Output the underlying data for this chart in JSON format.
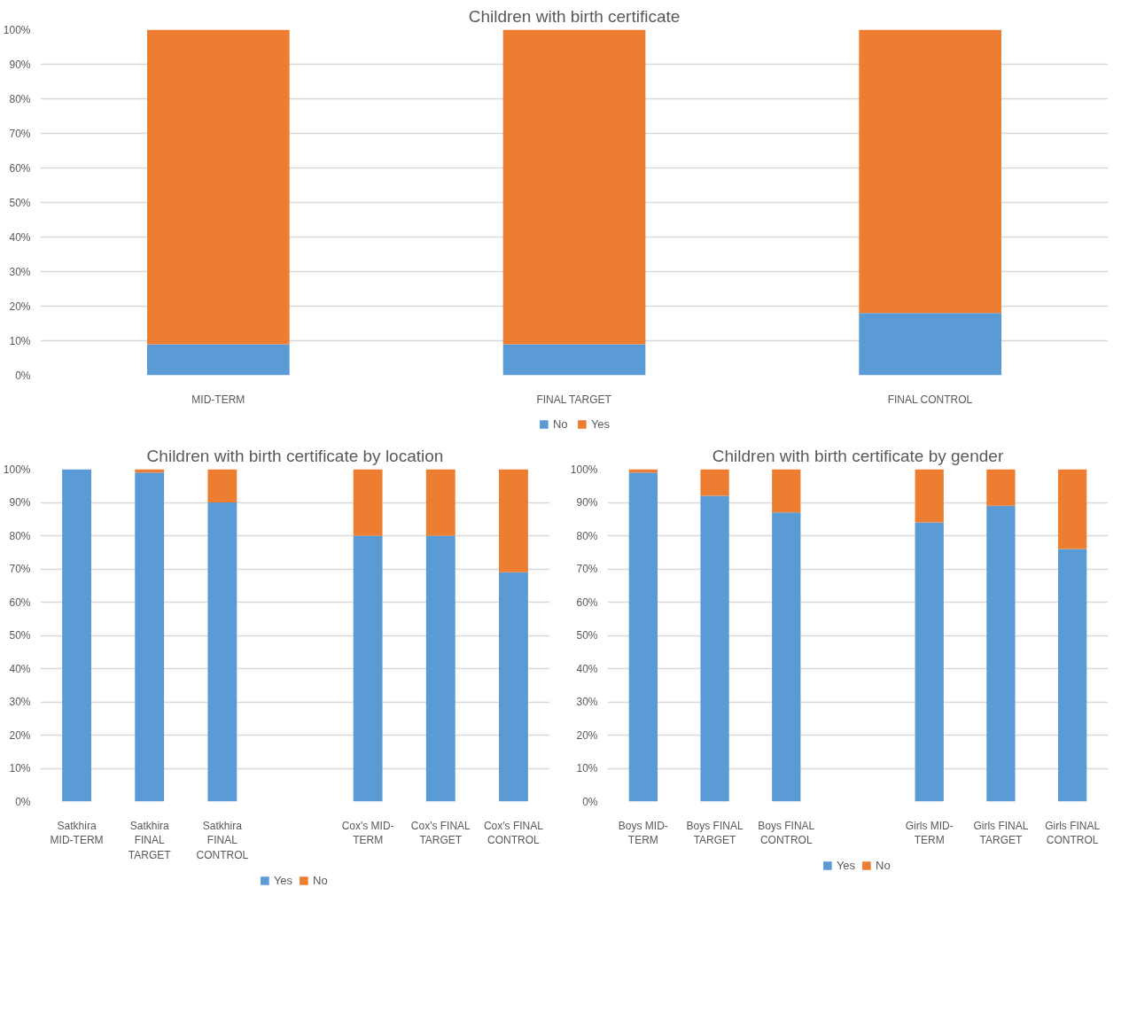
{
  "chart_data": [
    {
      "type": "bar",
      "title": "Children with birth certificate",
      "categories": [
        "MID-TERM",
        "FINAL TARGET",
        "FINAL CONTROL"
      ],
      "stacked": true,
      "grid": "y",
      "legend": "bottom",
      "ylim": [
        0,
        100
      ],
      "yticks": [
        {
          "value": 0,
          "label": "0%"
        },
        {
          "value": 10,
          "label": "10%"
        },
        {
          "value": 20,
          "label": "20%"
        },
        {
          "value": 30,
          "label": "30%"
        },
        {
          "value": 40,
          "label": "40%"
        },
        {
          "value": 50,
          "label": "50%"
        },
        {
          "value": 60,
          "label": "60%"
        },
        {
          "value": 70,
          "label": "70%"
        },
        {
          "value": 80,
          "label": "80%"
        },
        {
          "value": 90,
          "label": "90%"
        },
        {
          "value": 100,
          "label": "100%"
        }
      ],
      "series": [
        {
          "name": "No",
          "color": "#5b9bd5",
          "values": [
            9,
            9,
            18
          ]
        },
        {
          "name": "Yes",
          "color": "#ed7d31",
          "values": [
            91,
            91,
            82
          ]
        }
      ]
    },
    {
      "type": "bar",
      "title": "Children with birth certificate by location",
      "categories": [
        "Satkhira MID-TERM",
        "Satkhira FINAL TARGET",
        "Satkhira FINAL CONTROL",
        null,
        "Cox's MID-TERM",
        "Cox's FINAL TARGET",
        "Cox's FINAL CONTROL"
      ],
      "stacked": true,
      "grid": "y",
      "legend": "bottom",
      "ylim": [
        0,
        100
      ],
      "yticks": [
        {
          "value": 0,
          "label": "0%"
        },
        {
          "value": 10,
          "label": "10%"
        },
        {
          "value": 20,
          "label": "20%"
        },
        {
          "value": 30,
          "label": "30%"
        },
        {
          "value": 40,
          "label": "40%"
        },
        {
          "value": 50,
          "label": "50%"
        },
        {
          "value": 60,
          "label": "60%"
        },
        {
          "value": 70,
          "label": "70%"
        },
        {
          "value": 80,
          "label": "80%"
        },
        {
          "value": 90,
          "label": "90%"
        },
        {
          "value": 100,
          "label": "100%"
        }
      ],
      "series": [
        {
          "name": "Yes",
          "color": "#5b9bd5",
          "values": [
            100,
            99,
            90,
            null,
            80,
            80,
            69
          ]
        },
        {
          "name": "No",
          "color": "#ed7d31",
          "values": [
            0,
            1,
            10,
            null,
            20,
            20,
            31
          ]
        }
      ]
    },
    {
      "type": "bar",
      "title": "Children with birth certificate by gender",
      "categories": [
        "Boys MID-TERM",
        "Boys FINAL TARGET",
        "Boys FINAL CONTROL",
        null,
        "Girls MID-TERM",
        "Girls FINAL TARGET",
        "Girls FINAL CONTROL"
      ],
      "stacked": true,
      "grid": "y",
      "legend": "bottom",
      "ylim": [
        0,
        100
      ],
      "yticks": [
        {
          "value": 0,
          "label": "0%"
        },
        {
          "value": 10,
          "label": "10%"
        },
        {
          "value": 20,
          "label": "20%"
        },
        {
          "value": 30,
          "label": "30%"
        },
        {
          "value": 40,
          "label": "40%"
        },
        {
          "value": 50,
          "label": "50%"
        },
        {
          "value": 60,
          "label": "60%"
        },
        {
          "value": 70,
          "label": "70%"
        },
        {
          "value": 80,
          "label": "80%"
        },
        {
          "value": 90,
          "label": "90%"
        },
        {
          "value": 100,
          "label": "100%"
        }
      ],
      "series": [
        {
          "name": "Yes",
          "color": "#5b9bd5",
          "values": [
            99,
            92,
            87,
            null,
            84,
            89,
            76
          ]
        },
        {
          "name": "No",
          "color": "#ed7d31",
          "values": [
            1,
            8,
            13,
            null,
            16,
            11,
            24
          ]
        }
      ]
    }
  ]
}
